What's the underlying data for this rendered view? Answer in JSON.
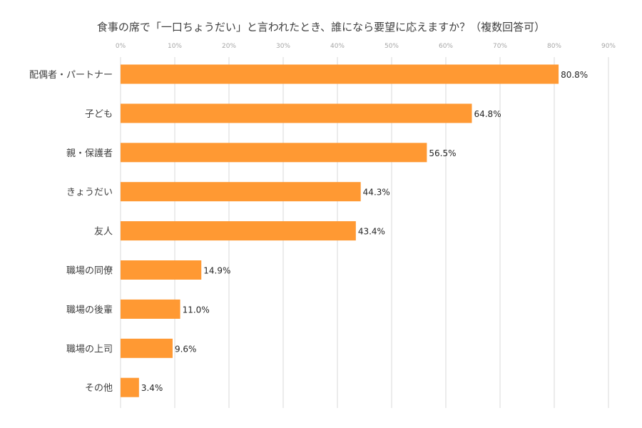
{
  "chart_data": {
    "type": "bar",
    "orientation": "horizontal",
    "title": "食事の席で「一口ちょうだい」と言われたとき、誰になら要望に応えますか？（複数回答可）",
    "categories": [
      "配偶者・パートナー",
      "子ども",
      "親・保護者",
      "きょうだい",
      "友人",
      "職場の同僚",
      "職場の後輩",
      "職場の上司",
      "その他"
    ],
    "values": [
      80.8,
      64.8,
      56.5,
      44.3,
      43.4,
      14.9,
      11.0,
      9.6,
      3.4
    ],
    "data_labels": [
      "80.8%",
      "64.8%",
      "56.5%",
      "44.3%",
      "43.4%",
      "14.9%",
      "11.0%",
      "9.6%",
      "3.4%"
    ],
    "xticks": [
      "0%",
      "10%",
      "20%",
      "30%",
      "40%",
      "50%",
      "60%",
      "70%",
      "80%",
      "90%"
    ],
    "xlim": [
      0,
      90
    ],
    "axis_position": "top",
    "grid": true,
    "bar_color": "#FF9933"
  }
}
